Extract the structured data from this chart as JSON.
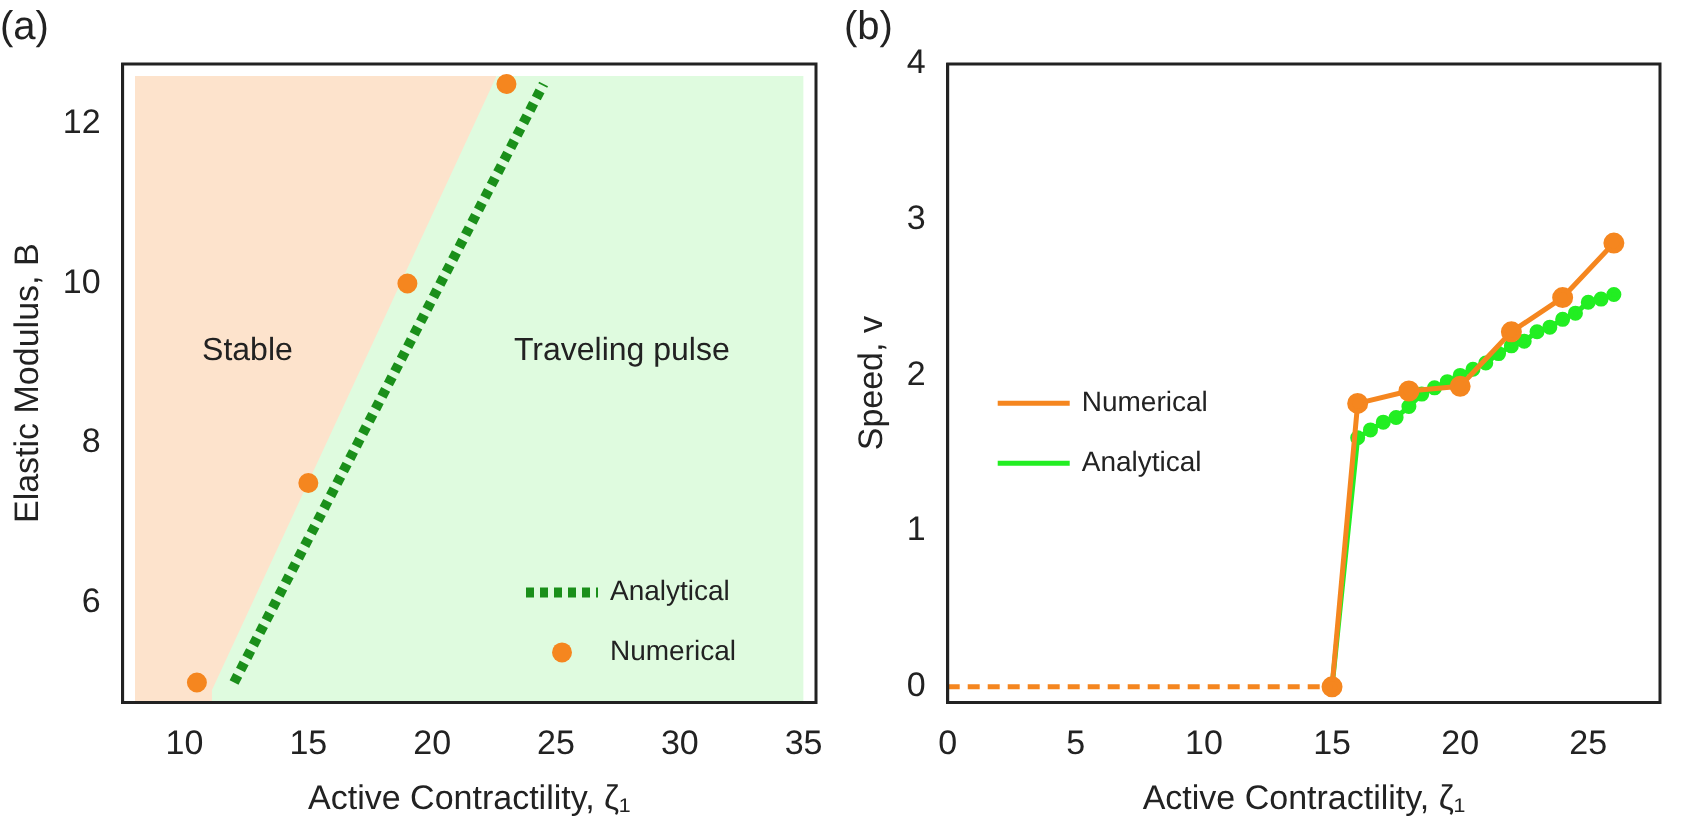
{
  "chart_data": [
    {
      "type": "line",
      "title": "(a)",
      "xlabel": "Active Contractility, ζ₁",
      "ylabel": "Elastic Modulus, B",
      "xlim": [
        7.5,
        35.5
      ],
      "ylim": [
        4.75,
        12.75
      ],
      "xticks": [
        10,
        15,
        20,
        25,
        30,
        35
      ],
      "yticks": [
        6,
        8,
        10,
        12
      ],
      "legend": "bottom right",
      "grid": false,
      "series": [
        {
          "type": "area",
          "color": "#fde3cc",
          "x": [
            8,
            22.6
          ],
          "values": [
            12.6,
            12.6
          ]
        },
        {
          "type": "area",
          "color": "#dffbdf",
          "x": [
            11.1,
            22.6,
            35
          ],
          "values": [
            4.9,
            12.6,
            12.6
          ]
        },
        {
          "name": "Analytical",
          "color": "#1a8f1a",
          "line_style": "dotted",
          "marker": "none",
          "x": [
            12,
            24.5
          ],
          "values": [
            5,
            12.5
          ]
        },
        {
          "type": "scatter",
          "name": "Numerical",
          "color": "#f5861f",
          "marker": "circle",
          "x": [
            10.5,
            15,
            19,
            23
          ],
          "values": [
            5,
            7.5,
            10,
            12.5
          ]
        }
      ],
      "annotations": [
        "Stable",
        "Traveling pulse"
      ]
    },
    {
      "type": "line",
      "title": "(b)",
      "xlabel": "Active Contractility, ζ₁",
      "ylabel": "Speed, v",
      "xlim": [
        0,
        27.8
      ],
      "ylim": [
        -0.1,
        4
      ],
      "xticks": [
        0,
        5,
        10,
        15,
        20,
        25
      ],
      "yticks": [
        0,
        1,
        2,
        3,
        4
      ],
      "legend": "left",
      "grid": false,
      "series": [
        {
          "color": "#f5861f",
          "line_style": "dashed",
          "x": [
            0,
            15
          ],
          "values": [
            0,
            0
          ]
        },
        {
          "name": "Numerical",
          "color": "#f5861f",
          "line_style": "solid",
          "marker": "circle",
          "x": [
            15,
            16,
            18,
            20,
            22,
            24,
            26
          ],
          "values": [
            0,
            1.82,
            1.9,
            1.93,
            2.28,
            2.5,
            2.85
          ]
        },
        {
          "name": "Analytical",
          "color": "#22ee22",
          "line_style": "solid",
          "marker": "circle",
          "x": [
            15,
            16,
            16.5,
            17,
            17.5,
            18,
            18.5,
            19,
            19.5,
            20,
            20.5,
            21,
            21.5,
            22,
            22.5,
            23,
            23.5,
            24,
            24.5,
            25,
            25.5,
            26
          ],
          "values": [
            0,
            1.6,
            1.65,
            1.7,
            1.73,
            1.8,
            1.88,
            1.92,
            1.96,
            2.0,
            2.04,
            2.08,
            2.14,
            2.19,
            2.22,
            2.28,
            2.31,
            2.36,
            2.4,
            2.47,
            2.49,
            2.52
          ]
        }
      ]
    }
  ]
}
